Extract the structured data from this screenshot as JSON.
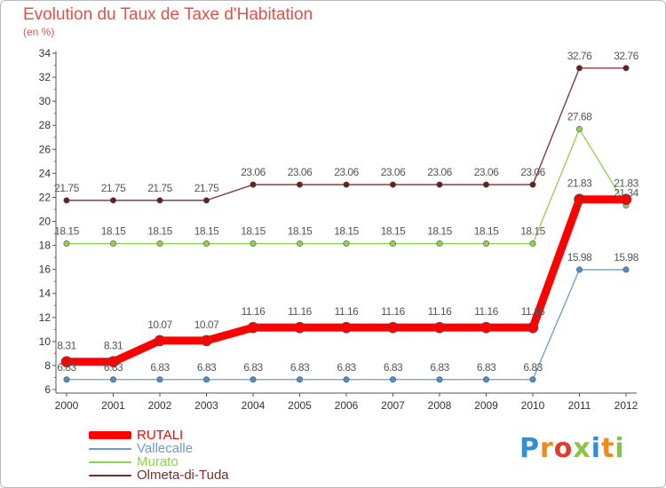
{
  "title": "Evolution du Taux de Taxe d'Habitation",
  "unit": "(en %)",
  "logo": {
    "text": "Proxiti",
    "colors": [
      "#2e8fd6",
      "#f08a1c",
      "#e23b2e",
      "#8bc34a",
      "#2e8fd6",
      "#f08a1c",
      "#8bc34a"
    ]
  },
  "chart_data": {
    "type": "line",
    "title": "Evolution du Taux de Taxe d'Habitation",
    "ylabel": "(en %)",
    "xlabel": "",
    "x": [
      "2000",
      "2001",
      "2002",
      "2003",
      "2004",
      "2005",
      "2006",
      "2007",
      "2008",
      "2009",
      "2010",
      "2011",
      "2012"
    ],
    "ylim": [
      6,
      34
    ],
    "yticks": [
      6,
      8,
      10,
      12,
      14,
      16,
      18,
      20,
      22,
      24,
      26,
      28,
      30,
      32,
      34
    ],
    "grid": false,
    "legend": "bottom-left",
    "series": [
      {
        "name": "RUTALI",
        "color": "#ff0000",
        "values": [
          8.31,
          8.31,
          10.07,
          10.07,
          11.16,
          11.16,
          11.16,
          11.16,
          11.16,
          11.16,
          11.16,
          21.83,
          21.83
        ]
      },
      {
        "name": "Vallecalle",
        "color": "#6b9ec7",
        "values": [
          6.83,
          6.83,
          6.83,
          6.83,
          6.83,
          6.83,
          6.83,
          6.83,
          6.83,
          6.83,
          6.83,
          15.98,
          15.98
        ]
      },
      {
        "name": "Murato",
        "color": "#8fd14f",
        "values": [
          18.15,
          18.15,
          18.15,
          18.15,
          18.15,
          18.15,
          18.15,
          18.15,
          18.15,
          18.15,
          18.15,
          27.68,
          21.34
        ]
      },
      {
        "name": "Olmeta-di-Tuda",
        "color": "#7a2e2e",
        "values": [
          21.75,
          21.75,
          21.75,
          21.75,
          23.06,
          23.06,
          23.06,
          23.06,
          23.06,
          23.06,
          23.06,
          32.76,
          32.76
        ]
      }
    ]
  }
}
